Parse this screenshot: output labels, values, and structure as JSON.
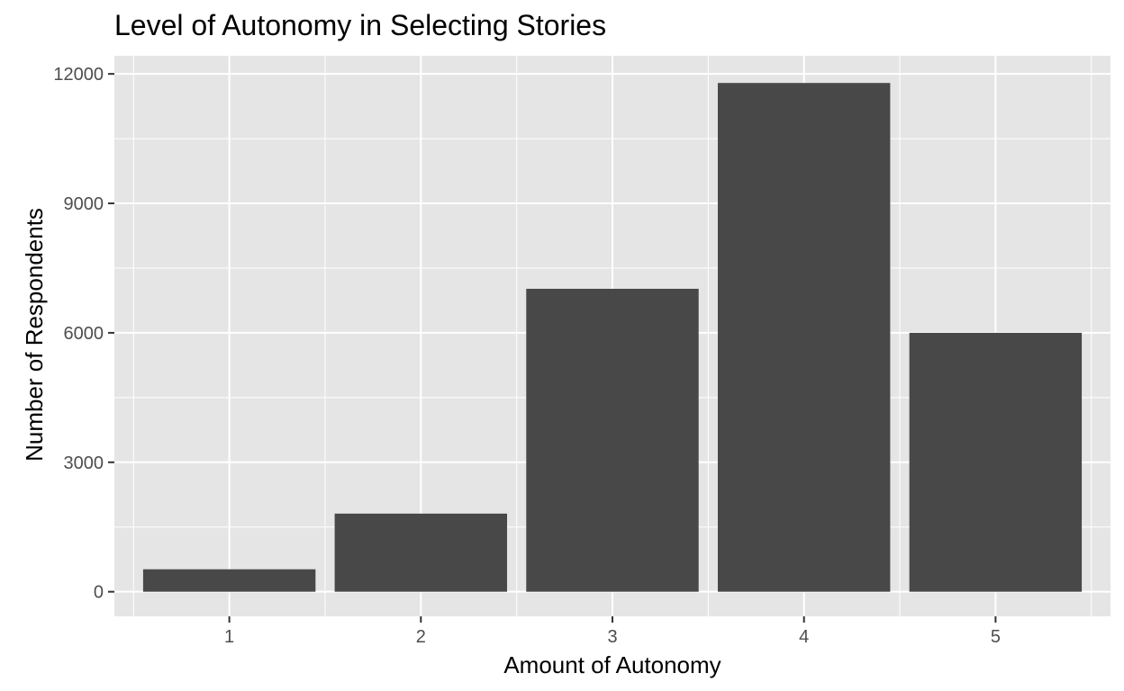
{
  "chart_data": {
    "type": "bar",
    "title": "Level of Autonomy in Selecting Stories",
    "xlabel": "Amount of Autonomy",
    "ylabel": "Number of Respondents",
    "categories": [
      "1",
      "2",
      "3",
      "4",
      "5"
    ],
    "values": [
      520,
      1810,
      7020,
      11790,
      6000
    ],
    "ylim": [
      -570,
      12420
    ],
    "yticks": [
      0,
      3000,
      6000,
      9000,
      12000
    ],
    "ytick_labels": [
      "0",
      "3000",
      "6000",
      "9000",
      "12000"
    ],
    "grid": true,
    "colors": {
      "panel": "#e5e5e5",
      "bar": "#484848",
      "grid": "#ffffff"
    }
  }
}
